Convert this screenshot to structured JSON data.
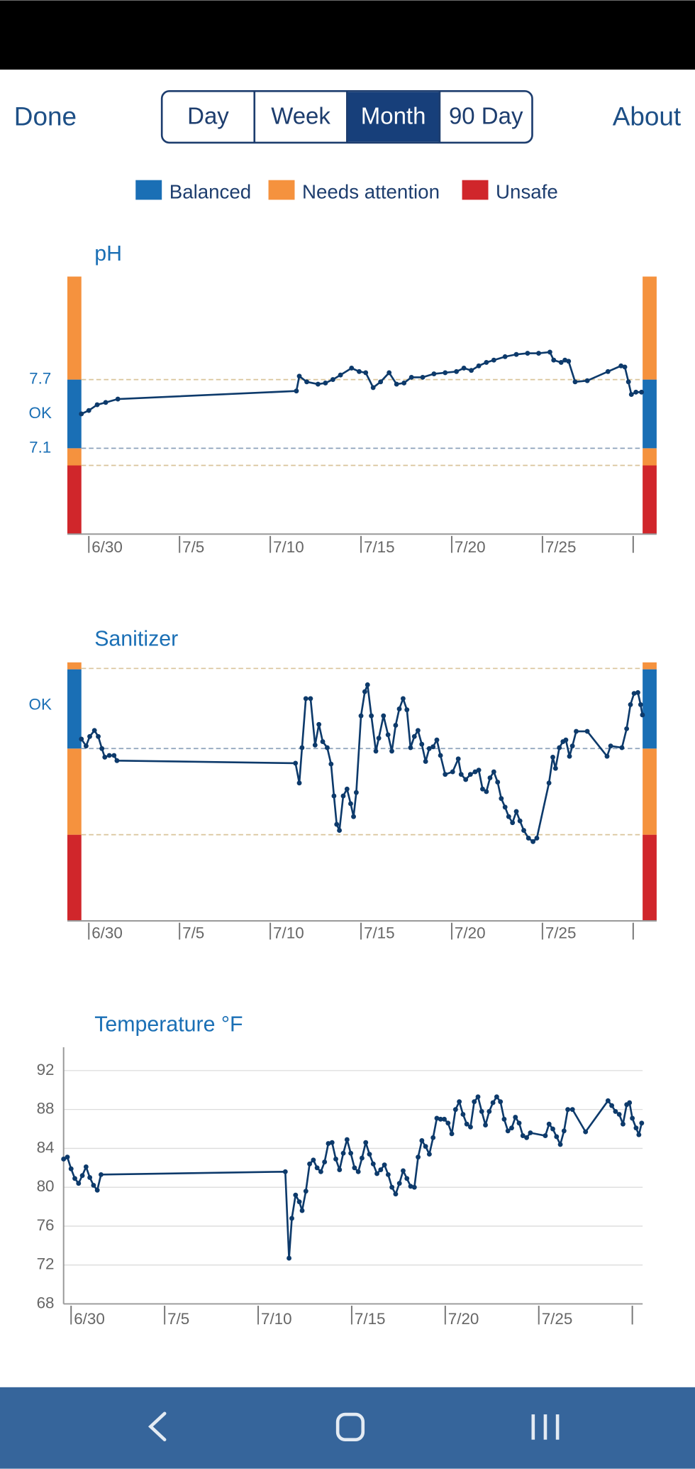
{
  "header": {
    "done": "Done",
    "tabs": [
      "Day",
      "Week",
      "Month",
      "90 Day"
    ],
    "selected_tab": 2,
    "about": "About"
  },
  "legend": [
    {
      "label": "Balanced",
      "color": "#1a6fb5"
    },
    {
      "label": "Needs attention",
      "color": "#f5923e"
    },
    {
      "label": "Unsafe",
      "color": "#d0262b"
    }
  ],
  "chart_data": [
    {
      "type": "line",
      "title": "pH",
      "color": "#0d3a6b",
      "xlim": [
        -0.41,
        30.52
      ],
      "xticks": [
        {
          "value": 0,
          "label": "6/30"
        },
        {
          "value": 5,
          "label": "7/5"
        },
        {
          "value": 10,
          "label": "7/10"
        },
        {
          "value": 15,
          "label": "7/15"
        },
        {
          "value": 20,
          "label": "7/20"
        },
        {
          "value": 25,
          "label": "7/25"
        },
        {
          "value": 30,
          "label": null
        }
      ],
      "ylim": [
        6.35,
        8.6
      ],
      "yticks": [
        7.7,
        {
          "value": 7.4,
          "label": "OK"
        },
        7.1
      ],
      "zones": [
        {
          "range": [
            6.35,
            6.95
          ],
          "color": "#d0262b"
        },
        {
          "range": [
            6.95,
            7.1
          ],
          "color": "#f5923e"
        },
        {
          "range": [
            7.1,
            7.7
          ],
          "color": "#1a6fb5"
        },
        {
          "range": [
            7.7,
            8.6
          ],
          "color": "#f5923e"
        }
      ],
      "thresholds": [
        {
          "value": 6.95,
          "color": "#d9c49a"
        },
        {
          "value": 7.1,
          "color": "#8da2bb"
        },
        {
          "value": 7.7,
          "color": "#d9c49a"
        }
      ],
      "grid": false,
      "x": [
        -0.41,
        0,
        0.46,
        0.93,
        1.6,
        11.44,
        11.6,
        12.01,
        12.63,
        13.04,
        13.45,
        13.87,
        14.48,
        14.9,
        15.26,
        15.67,
        16.08,
        16.55,
        16.96,
        17.37,
        17.78,
        18.4,
        19.02,
        19.64,
        20.26,
        20.67,
        21.08,
        21.49,
        21.91,
        22.32,
        22.94,
        23.56,
        24.18,
        24.79,
        25.41,
        25.62,
        26.03,
        26.24,
        26.44,
        26.8,
        27.47,
        28.61,
        29.33,
        29.54,
        29.74,
        29.9,
        30.15,
        30.46
      ],
      "values": [
        7.4,
        7.43,
        7.48,
        7.5,
        7.53,
        7.6,
        7.73,
        7.68,
        7.66,
        7.67,
        7.7,
        7.74,
        7.8,
        7.77,
        7.76,
        7.63,
        7.68,
        7.76,
        7.66,
        7.67,
        7.72,
        7.72,
        7.75,
        7.76,
        7.77,
        7.8,
        7.78,
        7.82,
        7.85,
        7.87,
        7.9,
        7.92,
        7.93,
        7.93,
        7.94,
        7.87,
        7.85,
        7.87,
        7.86,
        7.68,
        7.69,
        7.77,
        7.82,
        7.81,
        7.68,
        7.57,
        7.59,
        7.59
      ]
    },
    {
      "type": "line",
      "title": "Sanitizer",
      "color": "#0d3a6b",
      "xlim": [
        -0.41,
        30.52
      ],
      "xticks": [
        {
          "value": 0,
          "label": "6/30"
        },
        {
          "value": 5,
          "label": "7/5"
        },
        {
          "value": 10,
          "label": "7/10"
        },
        {
          "value": 15,
          "label": "7/15"
        },
        {
          "value": 20,
          "label": "7/20"
        },
        {
          "value": 25,
          "label": "7/25"
        },
        {
          "value": 30,
          "label": null
        }
      ],
      "ylim": [
        0,
        3
      ],
      "yticks": [
        {
          "value": 2.5,
          "label": "OK"
        }
      ],
      "zones": [
        {
          "range": [
            0,
            1
          ],
          "color": "#d0262b"
        },
        {
          "range": [
            1,
            2
          ],
          "color": "#f5923e"
        },
        {
          "range": [
            2,
            2.92
          ],
          "color": "#1a6fb5"
        },
        {
          "range": [
            2.92,
            3
          ],
          "color": "#f5923e"
        }
      ],
      "thresholds": [
        {
          "value": 1,
          "color": "#d9c49a"
        },
        {
          "value": 2,
          "color": "#8da2bb"
        },
        {
          "value": 2.93,
          "color": "#d9c49a"
        }
      ],
      "grid": false,
      "x": [
        -0.41,
        -0.15,
        0.05,
        0.31,
        0.52,
        0.72,
        0.88,
        1.13,
        1.39,
        1.55,
        11.39,
        11.6,
        11.75,
        11.96,
        12.22,
        12.47,
        12.68,
        12.89,
        13.14,
        13.35,
        13.51,
        13.66,
        13.81,
        14.02,
        14.23,
        14.43,
        14.59,
        14.74,
        15.0,
        15.21,
        15.36,
        15.57,
        15.82,
        15.98,
        16.24,
        16.49,
        16.7,
        16.91,
        17.11,
        17.32,
        17.53,
        17.73,
        17.94,
        18.14,
        18.35,
        18.56,
        18.76,
        18.97,
        19.18,
        19.38,
        19.64,
        20.05,
        20.36,
        20.52,
        20.77,
        21.03,
        21.29,
        21.49,
        21.7,
        21.91,
        22.11,
        22.32,
        22.53,
        22.73,
        22.94,
        23.14,
        23.35,
        23.56,
        23.76,
        23.97,
        24.23,
        24.48,
        24.69,
        25.36,
        25.57,
        25.72,
        25.93,
        26.13,
        26.29,
        26.49,
        26.65,
        26.86,
        27.47,
        28.56,
        28.76,
        29.38,
        29.64,
        29.85,
        30.05,
        30.26,
        30.41,
        30.51
      ],
      "values": [
        2.11,
        2.03,
        2.14,
        2.21,
        2.14,
        2.0,
        1.9,
        1.92,
        1.92,
        1.86,
        1.83,
        1.6,
        2.01,
        2.58,
        2.58,
        2.04,
        2.28,
        2.08,
        2.01,
        1.82,
        1.45,
        1.12,
        1.05,
        1.45,
        1.53,
        1.36,
        1.21,
        1.49,
        2.38,
        2.66,
        2.74,
        2.38,
        1.97,
        2.12,
        2.38,
        2.16,
        1.97,
        2.27,
        2.46,
        2.58,
        2.45,
        2.01,
        2.14,
        2.21,
        2.05,
        1.85,
        2.0,
        2.02,
        2.1,
        1.92,
        1.7,
        1.73,
        1.88,
        1.7,
        1.64,
        1.7,
        1.73,
        1.75,
        1.53,
        1.5,
        1.66,
        1.73,
        1.61,
        1.42,
        1.32,
        1.21,
        1.14,
        1.27,
        1.16,
        1.05,
        0.96,
        0.92,
        0.96,
        1.6,
        1.9,
        1.77,
        2.01,
        2.08,
        2.1,
        1.91,
        2.03,
        2.2,
        2.2,
        1.91,
        2.03,
        2.01,
        2.23,
        2.51,
        2.64,
        2.65,
        2.51,
        2.39
      ]
    },
    {
      "type": "line",
      "title": "Temperature °F",
      "color": "#0d3a6b",
      "xlim": [
        -0.4,
        30.55
      ],
      "xticks": [
        {
          "value": 0,
          "label": "6/30"
        },
        {
          "value": 5,
          "label": "7/5"
        },
        {
          "value": 10,
          "label": "7/10"
        },
        {
          "value": 15,
          "label": "7/15"
        },
        {
          "value": 20,
          "label": "7/20"
        },
        {
          "value": 25,
          "label": "7/25"
        },
        {
          "value": 30,
          "label": null
        }
      ],
      "ylim": [
        68,
        94.4
      ],
      "yticks": [
        68,
        72,
        76,
        80,
        84,
        88,
        92
      ],
      "grid": true,
      "x": [
        -0.4,
        -0.2,
        0,
        0.2,
        0.4,
        0.6,
        0.8,
        1.0,
        1.2,
        1.4,
        1.6,
        11.45,
        11.65,
        11.8,
        12.0,
        12.2,
        12.35,
        12.55,
        12.75,
        12.95,
        13.15,
        13.35,
        13.55,
        13.75,
        13.95,
        14.15,
        14.35,
        14.55,
        14.75,
        14.95,
        15.15,
        15.35,
        15.55,
        15.75,
        15.95,
        16.15,
        16.35,
        16.55,
        16.75,
        16.95,
        17.15,
        17.35,
        17.55,
        17.75,
        17.95,
        18.15,
        18.35,
        18.55,
        18.75,
        18.95,
        19.15,
        19.35,
        19.55,
        19.75,
        19.95,
        20.15,
        20.35,
        20.55,
        20.75,
        20.95,
        21.15,
        21.35,
        21.55,
        21.75,
        21.95,
        22.15,
        22.35,
        22.55,
        22.75,
        22.95,
        23.15,
        23.35,
        23.55,
        23.75,
        23.95,
        24.15,
        24.35,
        24.55,
        25.35,
        25.55,
        25.75,
        25.95,
        26.15,
        26.35,
        26.55,
        26.8,
        27.5,
        28.7,
        28.9,
        29.1,
        29.3,
        29.5,
        29.7,
        29.85,
        30.0,
        30.2,
        30.35,
        30.5
      ],
      "values": [
        82.9,
        83.1,
        81.9,
        80.9,
        80.4,
        81.2,
        82.1,
        81.0,
        80.2,
        79.7,
        81.3,
        81.6,
        72.7,
        76.8,
        79.2,
        78.5,
        77.6,
        79.6,
        82.4,
        82.8,
        82.0,
        81.6,
        82.6,
        84.5,
        84.6,
        82.9,
        81.8,
        83.5,
        84.9,
        83.5,
        82.0,
        81.6,
        83.0,
        84.6,
        83.4,
        82.4,
        81.4,
        81.8,
        82.3,
        81.3,
        80.0,
        79.3,
        80.4,
        81.7,
        80.9,
        80.1,
        80.0,
        83.1,
        84.8,
        84.2,
        83.4,
        85.1,
        87.1,
        87.0,
        87.0,
        86.6,
        85.5,
        88.0,
        88.8,
        87.5,
        86.5,
        86.2,
        88.8,
        89.3,
        87.8,
        86.4,
        87.8,
        88.7,
        89.3,
        88.8,
        87.0,
        85.8,
        86.1,
        87.2,
        86.6,
        85.3,
        85.1,
        85.6,
        85.3,
        86.5,
        86.0,
        85.2,
        84.4,
        85.8,
        88.0,
        88.0,
        85.7,
        88.9,
        88.4,
        87.8,
        87.5,
        86.5,
        88.5,
        88.7,
        87.1,
        86.1,
        85.4,
        86.6
      ]
    }
  ]
}
